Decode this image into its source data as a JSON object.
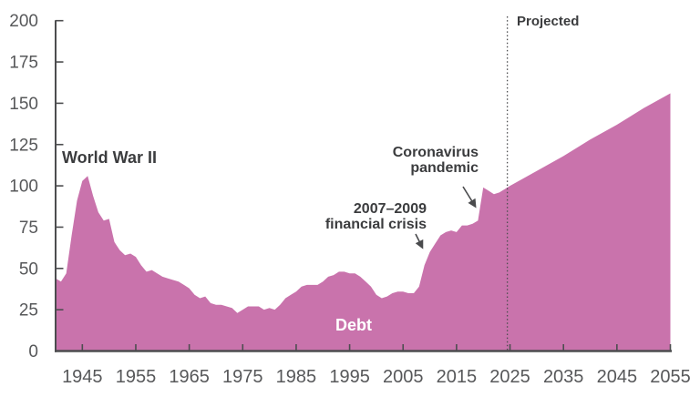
{
  "chart_data": {
    "type": "area",
    "title": "",
    "series_name": "Debt",
    "x": [
      1940,
      1941,
      1942,
      1943,
      1944,
      1945,
      1946,
      1947,
      1948,
      1949,
      1950,
      1951,
      1952,
      1953,
      1954,
      1955,
      1956,
      1957,
      1958,
      1959,
      1960,
      1961,
      1962,
      1963,
      1964,
      1965,
      1966,
      1967,
      1968,
      1969,
      1970,
      1971,
      1972,
      1973,
      1974,
      1975,
      1976,
      1977,
      1978,
      1979,
      1980,
      1981,
      1982,
      1983,
      1984,
      1985,
      1986,
      1987,
      1988,
      1989,
      1990,
      1991,
      1992,
      1993,
      1994,
      1995,
      1996,
      1997,
      1998,
      1999,
      2000,
      2001,
      2002,
      2003,
      2004,
      2005,
      2006,
      2007,
      2008,
      2009,
      2010,
      2011,
      2012,
      2013,
      2014,
      2015,
      2016,
      2017,
      2018,
      2019,
      2020,
      2021,
      2022,
      2023,
      2024,
      2025,
      2030,
      2035,
      2040,
      2045,
      2050,
      2055
    ],
    "values": [
      44,
      42,
      47,
      70,
      91,
      103,
      106,
      94,
      84,
      79,
      80,
      66,
      61,
      58,
      59,
      57,
      52,
      48,
      49,
      47,
      45,
      44,
      43,
      42,
      40,
      38,
      34,
      32,
      33,
      29,
      28,
      28,
      27,
      26,
      23,
      25,
      27,
      27,
      27,
      25,
      26,
      25,
      28,
      32,
      34,
      36,
      39,
      40,
      40,
      40,
      42,
      45,
      46,
      48,
      48,
      47,
      47,
      45,
      42,
      39,
      34,
      32,
      33,
      35,
      36,
      36,
      35,
      35,
      39,
      52,
      60,
      65,
      70,
      72,
      73,
      72,
      76,
      76,
      77,
      79,
      99,
      97,
      95,
      96,
      98,
      100,
      109,
      118,
      128,
      137,
      147,
      156
    ],
    "xlim": [
      1940,
      2055
    ],
    "ylim": [
      0,
      200
    ],
    "x_ticks": [
      "1945",
      "1955",
      "1965",
      "1975",
      "1985",
      "1995",
      "2005",
      "2015",
      "2025",
      "2035",
      "2045",
      "2055"
    ],
    "x_tick_years": [
      1945,
      1955,
      1965,
      1975,
      1985,
      1995,
      2005,
      2015,
      2025,
      2035,
      2045,
      2055
    ],
    "y_ticks": [
      "0",
      "25",
      "50",
      "75",
      "100",
      "125",
      "150",
      "175",
      "200"
    ],
    "y_tick_values": [
      0,
      25,
      50,
      75,
      100,
      125,
      150,
      175,
      200
    ],
    "grid": false,
    "projection_start": 2025,
    "annotations": {
      "world_war_ii": "World War II",
      "financial_crisis": "2007–2009\nfinancial crisis",
      "coronavirus": "Coronavirus\npandemic",
      "projected": "Projected",
      "area_label": "Debt"
    },
    "colors": {
      "area_fill": "#c973ac",
      "axis": "#4c4d4f",
      "tick_label": "#57585a",
      "annotation_text": "#3b3c3e",
      "dashed_line": "#4d4e50",
      "arrow": "#4a4b4d",
      "area_label_text": "#ffffff"
    }
  }
}
